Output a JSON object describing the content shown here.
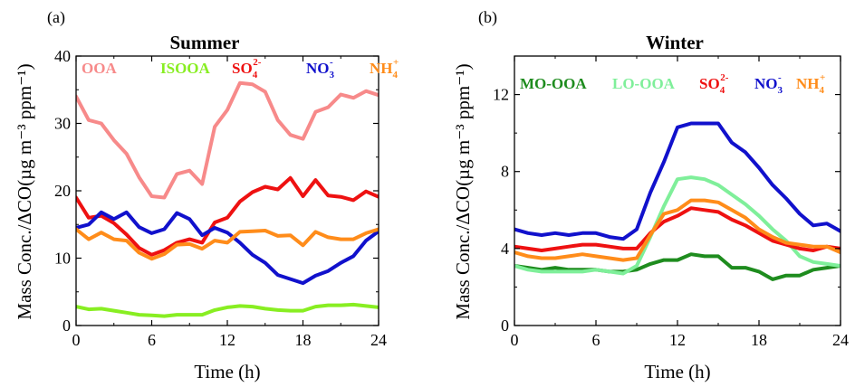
{
  "figure": {
    "chart_data": [
      {
        "type": "line",
        "panel_label": "(a)",
        "title": "Summer",
        "xlabel": "Time (h)",
        "ylabel": "Mass Conc./ΔCO(µg m⁻³ ppm⁻¹)",
        "xlim": [
          0,
          24
        ],
        "ylim": [
          0,
          40
        ],
        "xticks": [
          "0",
          "6",
          "12",
          "18",
          "24"
        ],
        "yticks": [
          "0",
          "10",
          "20",
          "30",
          "40"
        ],
        "grid": false,
        "legend_position": "top",
        "x": [
          0,
          1,
          2,
          3,
          4,
          5,
          6,
          7,
          8,
          9,
          10,
          11,
          12,
          13,
          14,
          15,
          16,
          17,
          18,
          19,
          20,
          21,
          22,
          23,
          24
        ],
        "series": [
          {
            "name": "OOA",
            "label": "OOA",
            "color": "#f78a8a",
            "values": [
              34,
              30.5,
              30,
              27.5,
              25.5,
              22,
              19.2,
              19,
              22.5,
              23,
              21,
              29.5,
              32,
              36,
              35.8,
              34.7,
              30.5,
              28.3,
              27.7,
              31.7,
              32.4,
              34.3,
              33.8,
              34.8,
              34.2
            ]
          },
          {
            "name": "ISOOA",
            "label": "ISOOA",
            "color": "#88ee22",
            "values": [
              2.8,
              2.4,
              2.5,
              2.2,
              1.9,
              1.6,
              1.5,
              1.4,
              1.6,
              1.6,
              1.6,
              2.3,
              2.7,
              2.9,
              2.8,
              2.5,
              2.3,
              2.2,
              2.2,
              2.8,
              3,
              3,
              3.1,
              2.9,
              2.7
            ]
          },
          {
            "name": "SO42-",
            "label": "SO",
            "sub": "4",
            "sup": "2-",
            "color": "#ee1111",
            "values": [
              19,
              16,
              16.3,
              15.2,
              13.5,
              11.5,
              10.5,
              11.2,
              12.3,
              12.8,
              12.3,
              15.3,
              16,
              18.4,
              19.8,
              20.6,
              20.2,
              21.9,
              19.2,
              21.6,
              19.3,
              19.1,
              18.6,
              19.9,
              19.1
            ]
          },
          {
            "name": "NO3-",
            "label": "NO",
            "sub": "3",
            "sup": "-",
            "color": "#1111cc",
            "values": [
              14.5,
              15,
              16.8,
              15.8,
              16.8,
              14.6,
              13.7,
              14.3,
              16.7,
              15.8,
              13.4,
              14.5,
              13.8,
              12.3,
              10.5,
              9.3,
              7.5,
              6.9,
              6.3,
              7.4,
              8.1,
              9.3,
              10.3,
              12.6,
              14
            ]
          },
          {
            "name": "NH4+",
            "label": "NH",
            "sub": "4",
            "sup": "+",
            "color": "#ff8c1a",
            "values": [
              14.3,
              12.8,
              13.8,
              12.8,
              12.6,
              10.8,
              9.9,
              10.6,
              12,
              12.1,
              11.4,
              12.6,
              12.3,
              13.9,
              14,
              14.1,
              13.3,
              13.4,
              11.9,
              13.9,
              13.1,
              12.8,
              12.8,
              13.7,
              14.3
            ]
          }
        ]
      },
      {
        "type": "line",
        "panel_label": "(b)",
        "title": "Winter",
        "xlabel": "Time (h)",
        "ylabel": "Mass Conc./ΔCO(µg m⁻³ ppm⁻¹)",
        "xlim": [
          0,
          24
        ],
        "ylim": [
          0,
          14
        ],
        "xticks": [
          "0",
          "6",
          "12",
          "18",
          "24"
        ],
        "yticks": [
          "0",
          "4",
          "8",
          "12"
        ],
        "grid": false,
        "legend_position": "top",
        "x": [
          0,
          1,
          2,
          3,
          4,
          5,
          6,
          7,
          8,
          9,
          10,
          11,
          12,
          13,
          14,
          15,
          16,
          17,
          18,
          19,
          20,
          21,
          22,
          23,
          24
        ],
        "series": [
          {
            "name": "MO-OOA",
            "label": "MO-OOA",
            "color": "#1e8c1e",
            "values": [
              3.1,
              3.0,
              2.9,
              3.0,
              2.9,
              2.9,
              2.9,
              2.8,
              2.8,
              2.9,
              3.2,
              3.4,
              3.4,
              3.7,
              3.6,
              3.6,
              3.0,
              3.0,
              2.8,
              2.4,
              2.6,
              2.6,
              2.9,
              3.0,
              3.1
            ]
          },
          {
            "name": "LO-OOA",
            "label": "LO-OOA",
            "color": "#7fef9a",
            "values": [
              3.1,
              2.9,
              2.8,
              2.8,
              2.8,
              2.8,
              2.9,
              2.8,
              2.7,
              3.1,
              4.6,
              6.2,
              7.6,
              7.7,
              7.6,
              7.3,
              6.8,
              6.3,
              5.7,
              5.0,
              4.4,
              3.6,
              3.3,
              3.2,
              3.1
            ]
          },
          {
            "name": "SO42-",
            "label": "SO",
            "sub": "4",
            "sup": "2-",
            "color": "#ee1111",
            "values": [
              4.1,
              4.0,
              3.9,
              4.0,
              4.1,
              4.2,
              4.2,
              4.1,
              4.0,
              4.0,
              4.8,
              5.4,
              5.7,
              6.1,
              6.0,
              5.9,
              5.5,
              5.2,
              4.8,
              4.4,
              4.2,
              4.0,
              3.9,
              4.1,
              4.0
            ]
          },
          {
            "name": "NO3-",
            "label": "NO",
            "sub": "3",
            "sup": "-",
            "color": "#1111cc",
            "values": [
              5.0,
              4.8,
              4.7,
              4.8,
              4.7,
              4.8,
              4.8,
              4.6,
              4.5,
              5.0,
              6.9,
              8.5,
              10.3,
              10.5,
              10.5,
              10.5,
              9.5,
              9.0,
              8.2,
              7.3,
              6.6,
              5.8,
              5.2,
              5.3,
              4.9
            ]
          },
          {
            "name": "NH4+",
            "label": "NH",
            "sub": "4",
            "sup": "+",
            "color": "#ff8c1a",
            "values": [
              3.8,
              3.6,
              3.5,
              3.5,
              3.6,
              3.7,
              3.6,
              3.5,
              3.4,
              3.5,
              4.7,
              5.8,
              6.0,
              6.5,
              6.5,
              6.4,
              6.0,
              5.6,
              5.0,
              4.6,
              4.3,
              4.2,
              4.1,
              4.1,
              3.8
            ]
          }
        ]
      }
    ]
  }
}
